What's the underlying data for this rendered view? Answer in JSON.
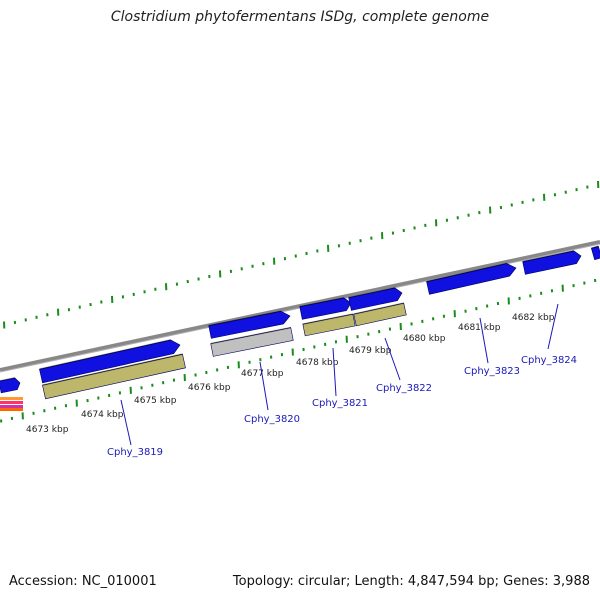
{
  "title": "Clostridium phytofermentans ISDg, complete genome",
  "footer": {
    "accession": "Accession: NC_010001",
    "topology": "Topology: circular; Length: 4,847,594 bp; Genes: 3,988"
  },
  "colors": {
    "gene_blue": "#1010e0",
    "gene_olive": "#bdb76b",
    "gene_gray": "#c0c0c0",
    "backbone": "#888888",
    "tick_green": "#1a8c1a",
    "label_blue": "#1a1ab8"
  },
  "kbp_ticks": [
    "4673 kbp",
    "4674 kbp",
    "4675 kbp",
    "4676 kbp",
    "4677 kbp",
    "4678 kbp",
    "4679 kbp",
    "4680 kbp",
    "4681 kbp",
    "4682 kbp"
  ],
  "gene_labels": [
    "Cphy_3819",
    "Cphy_3820",
    "Cphy_3821",
    "Cphy_3822",
    "Cphy_3823",
    "Cphy_3824"
  ]
}
